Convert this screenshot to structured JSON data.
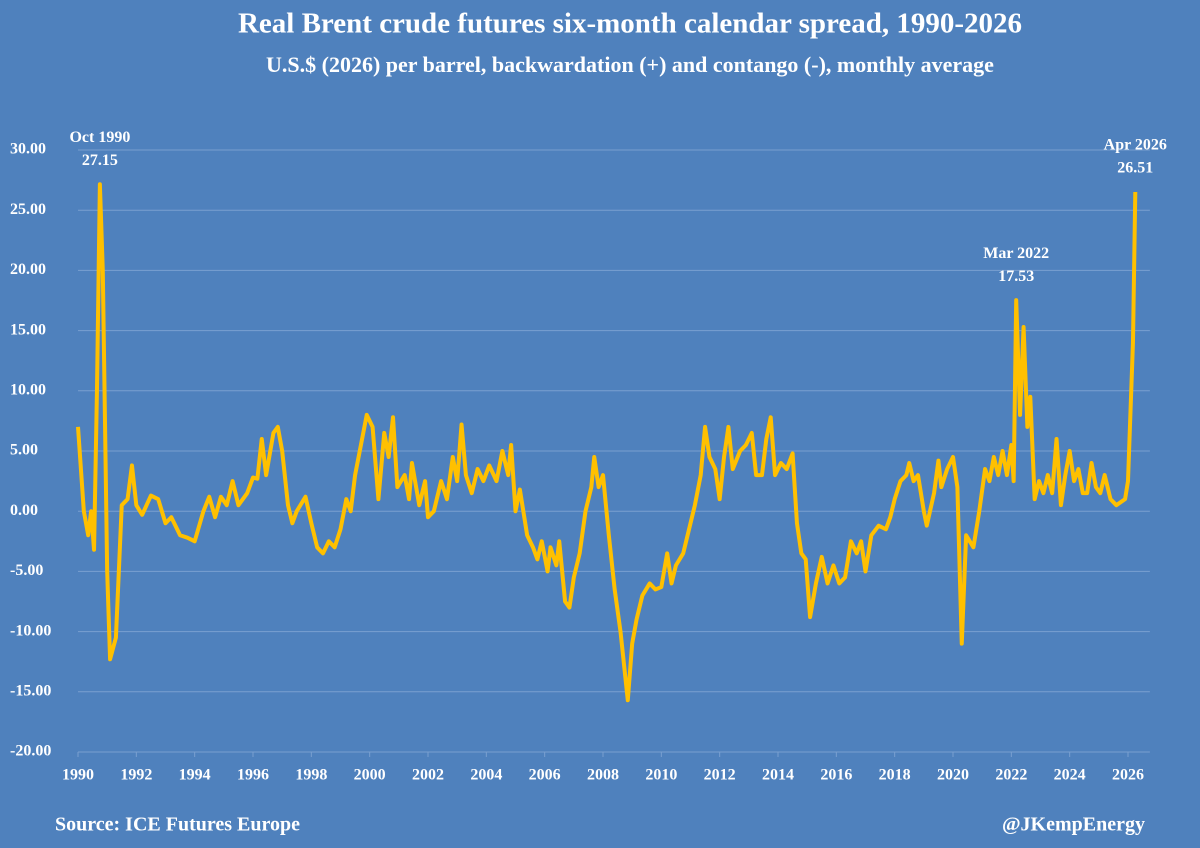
{
  "chart_data": {
    "type": "line",
    "title": "Real Brent crude futures six-month calendar spread, 1990-2026",
    "subtitle": "U.S.$ (2026) per barrel, backwardation (+) and contango (-), monthly average",
    "source": "Source: ICE Futures Europe",
    "credit": "@JKempEnergy",
    "x": [
      1990.0,
      1990.2,
      1990.35,
      1990.45,
      1990.55,
      1990.65,
      1990.75,
      1990.85,
      1991.0,
      1991.1,
      1991.3,
      1991.5,
      1991.7,
      1991.85,
      1992.0,
      1992.2,
      1992.5,
      1992.75,
      1993.0,
      1993.2,
      1993.5,
      1993.75,
      1994.0,
      1994.3,
      1994.5,
      1994.7,
      1994.9,
      1995.1,
      1995.3,
      1995.5,
      1995.8,
      1996.0,
      1996.15,
      1996.3,
      1996.45,
      1996.7,
      1996.85,
      1997.0,
      1997.2,
      1997.35,
      1997.5,
      1997.8,
      1998.0,
      1998.2,
      1998.4,
      1998.6,
      1998.8,
      1999.0,
      1999.2,
      1999.35,
      1999.5,
      1999.7,
      1999.9,
      2000.1,
      2000.3,
      2000.5,
      2000.65,
      2000.8,
      2000.95,
      2001.2,
      2001.35,
      2001.45,
      2001.7,
      2001.9,
      2002.0,
      2002.2,
      2002.45,
      2002.65,
      2002.85,
      2003.0,
      2003.15,
      2003.3,
      2003.5,
      2003.7,
      2003.9,
      2004.1,
      2004.35,
      2004.55,
      2004.75,
      2004.85,
      2005.0,
      2005.15,
      2005.4,
      2005.6,
      2005.75,
      2005.9,
      2006.1,
      2006.2,
      2006.4,
      2006.5,
      2006.7,
      2006.85,
      2007.0,
      2007.2,
      2007.4,
      2007.6,
      2007.7,
      2007.85,
      2008.0,
      2008.2,
      2008.4,
      2008.6,
      2008.85,
      2009.0,
      2009.15,
      2009.35,
      2009.6,
      2009.8,
      2010.0,
      2010.2,
      2010.35,
      2010.5,
      2010.75,
      2011.0,
      2011.15,
      2011.35,
      2011.5,
      2011.65,
      2011.85,
      2012.0,
      2012.15,
      2012.3,
      2012.45,
      2012.7,
      2012.9,
      2013.1,
      2013.25,
      2013.45,
      2013.6,
      2013.75,
      2013.9,
      2014.1,
      2014.3,
      2014.5,
      2014.65,
      2014.8,
      2014.95,
      2015.1,
      2015.3,
      2015.5,
      2015.7,
      2015.9,
      2016.1,
      2016.3,
      2016.5,
      2016.7,
      2016.85,
      2017.0,
      2017.2,
      2017.45,
      2017.7,
      2017.85,
      2018.0,
      2018.2,
      2018.4,
      2018.5,
      2018.65,
      2018.8,
      2019.0,
      2019.1,
      2019.35,
      2019.5,
      2019.6,
      2019.8,
      2020.0,
      2020.15,
      2020.3,
      2020.45,
      2020.7,
      2020.9,
      2021.1,
      2021.25,
      2021.4,
      2021.55,
      2021.7,
      2021.85,
      2022.0,
      2022.08,
      2022.167,
      2022.3,
      2022.42,
      2022.55,
      2022.65,
      2022.8,
      2022.95,
      2023.1,
      2023.25,
      2023.4,
      2023.55,
      2023.7,
      2023.85,
      2024.0,
      2024.15,
      2024.3,
      2024.45,
      2024.6,
      2024.75,
      2024.9,
      2025.05,
      2025.2,
      2025.4,
      2025.6,
      2025.9,
      2026.0,
      2026.17,
      2026.25
    ],
    "series": [
      {
        "name": "Six-month calendar spread",
        "color": "#ffc000",
        "values": [
          7.0,
          0,
          -2,
          0,
          -3.2,
          10,
          27.15,
          20,
          -5,
          -12.3,
          -10.5,
          0.5,
          1,
          3.8,
          0.5,
          -0.3,
          1.3,
          1,
          -1,
          -0.5,
          -2,
          -2.2,
          -2.5,
          0,
          1.2,
          -0.5,
          1.2,
          0.5,
          2.5,
          0.5,
          1.5,
          2.8,
          2.7,
          6,
          3,
          6.5,
          7,
          5,
          0.5,
          -1,
          0,
          1.2,
          -1,
          -3,
          -3.5,
          -2.5,
          -3,
          -1.5,
          1,
          0,
          3,
          5.5,
          8,
          7,
          1,
          6.5,
          4.5,
          7.8,
          2,
          3,
          1,
          4,
          0.5,
          2.5,
          -0.5,
          0,
          2.5,
          1,
          4.5,
          2.5,
          7.2,
          3,
          1.5,
          3.5,
          2.5,
          3.8,
          2.5,
          5,
          3,
          5.5,
          0,
          1.8,
          -2,
          -3,
          -4,
          -2.5,
          -5,
          -3,
          -4.5,
          -2.5,
          -7.5,
          -8,
          -5.5,
          -3.5,
          0,
          2,
          4.5,
          2,
          3,
          -2,
          -6.5,
          -10,
          -15.7,
          -11,
          -9,
          -7,
          -6,
          -6.5,
          -6.3,
          -3.5,
          -6,
          -4.5,
          -3.5,
          -1,
          0.5,
          3,
          7,
          4.5,
          3.5,
          1,
          4.5,
          7,
          3.5,
          5,
          5.5,
          6.5,
          3,
          3,
          6,
          7.8,
          3,
          4,
          3.5,
          4.8,
          -1,
          -3.5,
          -4,
          -8.8,
          -6,
          -3.8,
          -6,
          -4.5,
          -6,
          -5.5,
          -2.5,
          -3.5,
          -2.5,
          -5,
          -2,
          -1.2,
          -1.5,
          -0.5,
          1,
          2.5,
          3,
          4,
          2.5,
          3,
          0,
          -1.2,
          1.5,
          4.2,
          2,
          3.5,
          4.5,
          2,
          -11,
          -2,
          -3,
          0,
          3.5,
          2.5,
          4.5,
          3,
          5,
          3,
          5.5,
          2.5,
          17.53,
          8,
          15.3,
          7,
          9.5,
          1,
          2.5,
          1.5,
          3,
          1.5,
          6,
          0.5,
          3,
          5,
          2.5,
          3.5,
          1.5,
          1.5,
          4,
          2,
          1.5,
          3,
          1,
          0.5,
          1,
          2.5,
          14,
          26.51
        ]
      }
    ],
    "annotations": [
      {
        "date": "Oct 1990",
        "x": 1990.75,
        "value": 27.15
      },
      {
        "date": "Mar 2022",
        "x": 2022.167,
        "value": 17.53
      },
      {
        "date": "Apr 2026",
        "x": 2026.25,
        "value": 26.51
      }
    ],
    "xlim": [
      1990,
      2026.75
    ],
    "xticks": [
      1990,
      1992,
      1994,
      1996,
      1998,
      2000,
      2002,
      2004,
      2006,
      2008,
      2010,
      2012,
      2014,
      2016,
      2018,
      2020,
      2022,
      2024,
      2026
    ],
    "ylim": [
      -20,
      30
    ],
    "yticks": [
      {
        "value": -20,
        "label": "-20.00"
      },
      {
        "value": -15,
        "label": "-15.00"
      },
      {
        "value": -10,
        "label": "-10.00"
      },
      {
        "value": -5,
        "label": "-5.00"
      },
      {
        "value": 0,
        "label": "0.00"
      },
      {
        "value": 5,
        "label": "5.00"
      },
      {
        "value": 10,
        "label": "10.00"
      },
      {
        "value": 15,
        "label": "15.00"
      },
      {
        "value": 20,
        "label": "20.00"
      },
      {
        "value": 25,
        "label": "25.00"
      },
      {
        "value": 30,
        "label": "30.00"
      }
    ],
    "grid": true
  }
}
